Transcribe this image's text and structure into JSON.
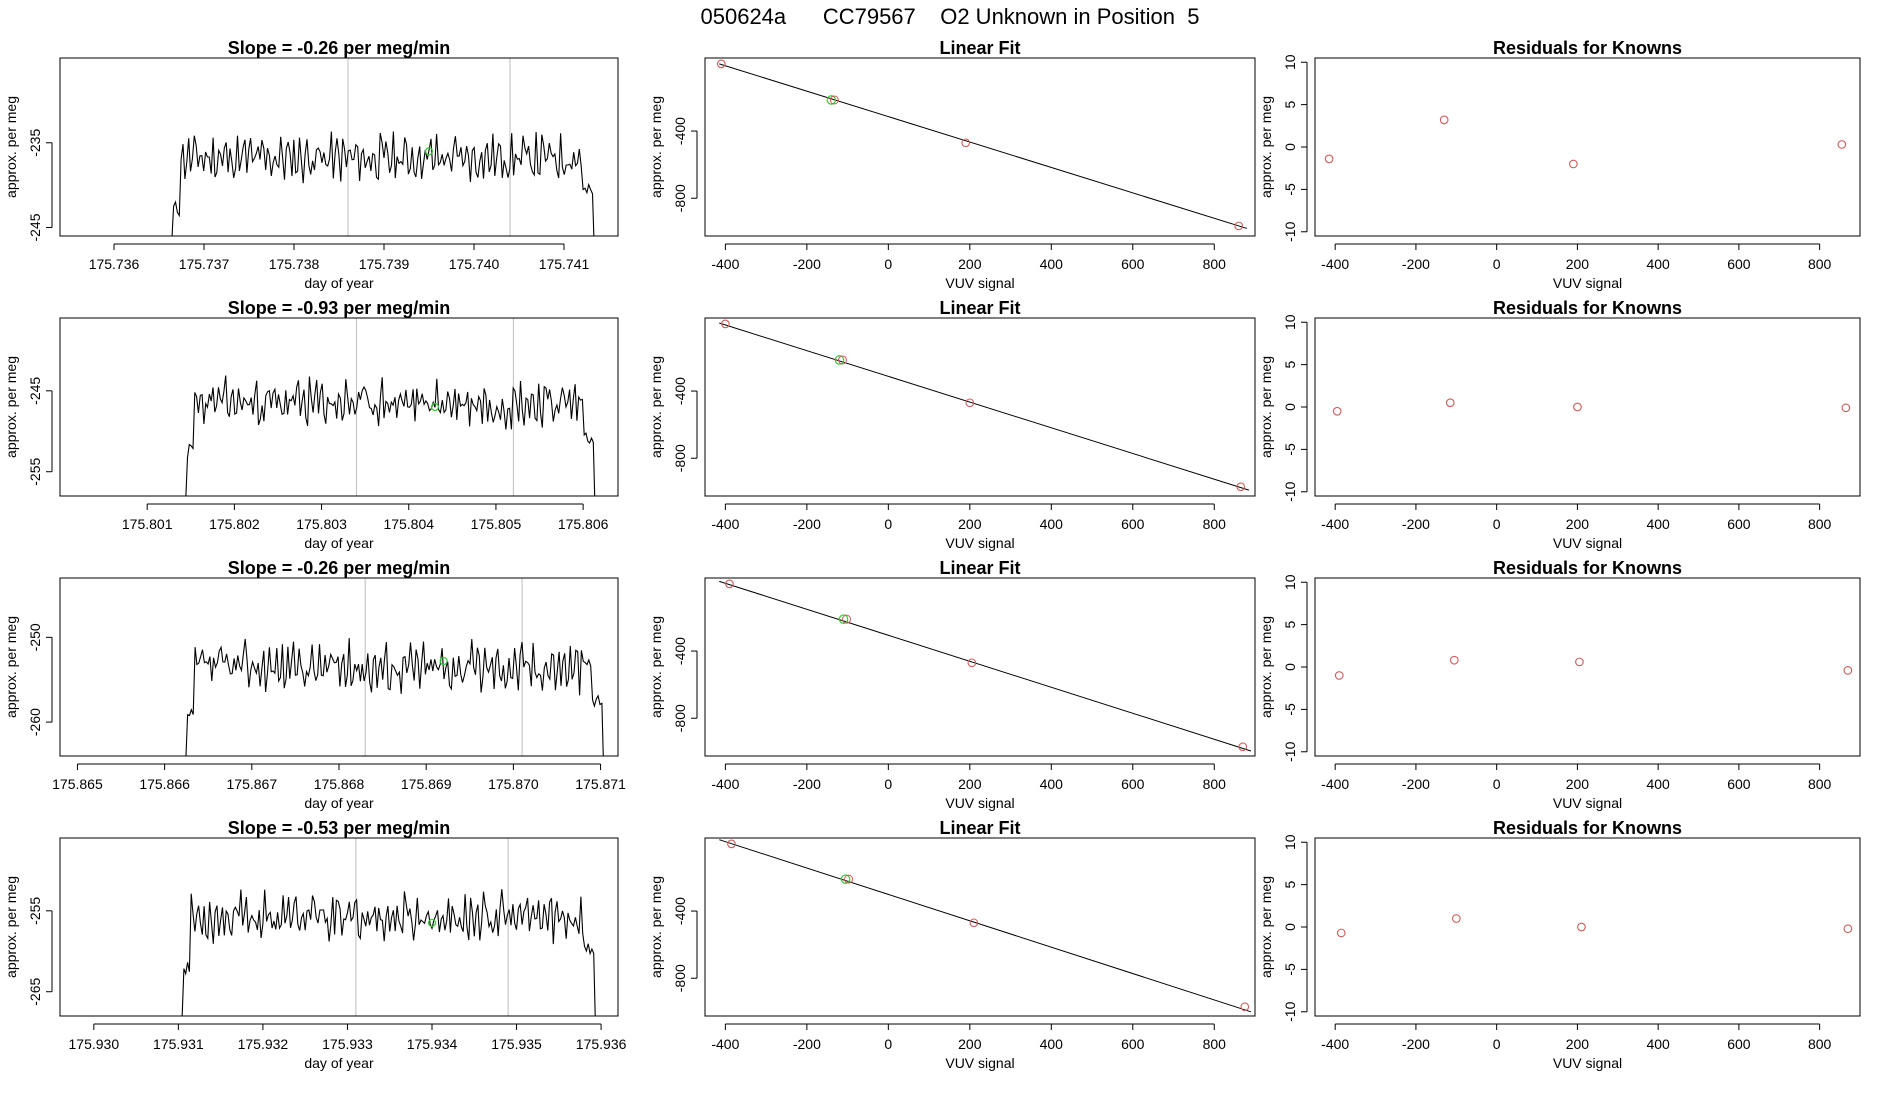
{
  "figure_title": "050624a      CC79567    O2 Unknown in Position  5",
  "colors": {
    "trace": "#000000",
    "vline": "#bebebe",
    "known_point": "#cd5c5c",
    "unknown_point": "#33cc33",
    "fit_line": "#000000"
  },
  "chart_data": [
    {
      "type": "line",
      "row": 1,
      "col": 1,
      "title": "Slope =  -0.26  per meg/min",
      "xlabel": "day of year",
      "ylabel": "approx. per meg",
      "xlim": [
        175.7354,
        175.7416
      ],
      "ylim": [
        -246,
        -225
      ],
      "xticks": [
        175.736,
        175.737,
        175.738,
        175.739,
        175.74,
        175.741
      ],
      "xtick_labels": [
        "175.736",
        "175.737",
        "175.738",
        "175.739",
        "175.740",
        "175.741"
      ],
      "yticks": [
        -235,
        -245
      ],
      "ytick_labels": [
        "-235",
        "-245"
      ],
      "vlines": [
        175.7386,
        175.7404
      ],
      "trace_x_start": 175.7366,
      "trace_x_end": 175.7414,
      "trace_level": -236.8,
      "trace_amp": 2.4,
      "trace_seed": 11,
      "marker": {
        "x": 175.7395,
        "y": -236.0
      }
    },
    {
      "type": "scatter",
      "row": 1,
      "col": 2,
      "title": "Linear Fit",
      "xlabel": "VUV signal",
      "ylabel": "approx. per meg",
      "xlim": [
        -450,
        900
      ],
      "ylim": [
        -1025,
        35
      ],
      "xticks": [
        -400,
        -200,
        0,
        200,
        400,
        600,
        800
      ],
      "xtick_labels": [
        "-400",
        "-200",
        "0",
        "200",
        "400",
        "600",
        "800"
      ],
      "yticks": [
        -400,
        -800
      ],
      "ytick_labels": [
        "-400",
        "-800"
      ],
      "known_points": [
        {
          "x": -410,
          "y": 0
        },
        {
          "x": 190,
          "y": -470
        },
        {
          "x": 860,
          "y": -965
        }
      ],
      "unknown_points": [
        {
          "x": -140,
          "y": -215
        }
      ],
      "fit_line": [
        {
          "x": -415,
          "y": 0
        },
        {
          "x": 880,
          "y": -980
        }
      ]
    },
    {
      "type": "scatter",
      "row": 1,
      "col": 3,
      "title": "Residuals for Knowns",
      "xlabel": "VUV signal",
      "ylabel": "approx. per meg",
      "xlim": [
        -450,
        900
      ],
      "ylim": [
        -10.5,
        10.5
      ],
      "xticks": [
        -400,
        -200,
        0,
        200,
        400,
        600,
        800
      ],
      "xtick_labels": [
        "-400",
        "-200",
        "0",
        "200",
        "400",
        "600",
        "800"
      ],
      "yticks": [
        10,
        5,
        0,
        -5,
        -10
      ],
      "ytick_labels": [
        "10",
        "5",
        "0",
        "-5",
        "-10"
      ],
      "points": [
        {
          "x": -415,
          "y": -1.4
        },
        {
          "x": -130,
          "y": 3.2
        },
        {
          "x": 190,
          "y": -2.0
        },
        {
          "x": 855,
          "y": 0.3
        }
      ]
    },
    {
      "type": "line",
      "row": 2,
      "col": 1,
      "title": "Slope =  -0.93  per meg/min",
      "xlabel": "day of year",
      "ylabel": "approx. per meg",
      "xlim": [
        175.8,
        175.8064
      ],
      "ylim": [
        -258,
        -236
      ],
      "xticks": [
        175.801,
        175.802,
        175.803,
        175.804,
        175.805,
        175.806
      ],
      "xtick_labels": [
        "175.801",
        "175.802",
        "175.803",
        "175.804",
        "175.805",
        "175.806"
      ],
      "yticks": [
        -245,
        -255
      ],
      "ytick_labels": [
        "-245",
        "-255"
      ],
      "vlines": [
        175.8034,
        175.8052
      ],
      "trace_x_start": 175.8014,
      "trace_x_end": 175.8062,
      "trace_level": -246.5,
      "trace_amp": 2.6,
      "trace_seed": 23,
      "marker": {
        "x": 175.8043,
        "y": -247.0
      }
    },
    {
      "type": "scatter",
      "row": 2,
      "col": 2,
      "title": "Linear Fit",
      "xlabel": "VUV signal",
      "ylabel": "approx. per meg",
      "xlim": [
        -450,
        900
      ],
      "ylim": [
        -1025,
        35
      ],
      "xticks": [
        -400,
        -200,
        0,
        200,
        400,
        600,
        800
      ],
      "xtick_labels": [
        "-400",
        "-200",
        "0",
        "200",
        "400",
        "600",
        "800"
      ],
      "yticks": [
        -400,
        -800
      ],
      "ytick_labels": [
        "-400",
        "-800"
      ],
      "known_points": [
        {
          "x": -400,
          "y": 0
        },
        {
          "x": 200,
          "y": -470
        },
        {
          "x": 865,
          "y": -970
        }
      ],
      "unknown_points": [
        {
          "x": -120,
          "y": -215
        }
      ],
      "fit_line": [
        {
          "x": -415,
          "y": 5
        },
        {
          "x": 885,
          "y": -990
        }
      ]
    },
    {
      "type": "scatter",
      "row": 2,
      "col": 3,
      "title": "Residuals for Knowns",
      "xlabel": "VUV signal",
      "ylabel": "approx. per meg",
      "xlim": [
        -450,
        900
      ],
      "ylim": [
        -10.5,
        10.5
      ],
      "xticks": [
        -400,
        -200,
        0,
        200,
        400,
        600,
        800
      ],
      "xtick_labels": [
        "-400",
        "-200",
        "0",
        "200",
        "400",
        "600",
        "800"
      ],
      "yticks": [
        10,
        5,
        0,
        -5,
        -10
      ],
      "ytick_labels": [
        "10",
        "5",
        "0",
        "-5",
        "-10"
      ],
      "points": [
        {
          "x": -395,
          "y": -0.5
        },
        {
          "x": -115,
          "y": 0.5
        },
        {
          "x": 200,
          "y": 0.0
        },
        {
          "x": 865,
          "y": -0.1
        }
      ]
    },
    {
      "type": "line",
      "row": 3,
      "col": 1,
      "title": "Slope =  -0.26  per meg/min",
      "xlabel": "day of year",
      "ylabel": "approx. per meg",
      "xlim": [
        175.8648,
        175.8712
      ],
      "ylim": [
        -264,
        -243
      ],
      "xticks": [
        175.865,
        175.866,
        175.867,
        175.868,
        175.869,
        175.87,
        175.871
      ],
      "xtick_labels": [
        "175.865",
        "175.866",
        "175.867",
        "175.868",
        "175.869",
        "175.870",
        "175.871"
      ],
      "yticks": [
        -250,
        -260
      ],
      "ytick_labels": [
        "-250",
        "-260"
      ],
      "vlines": [
        175.8683,
        175.8701
      ],
      "trace_x_start": 175.8662,
      "trace_x_end": 175.8711,
      "trace_level": -253.5,
      "trace_amp": 2.6,
      "trace_seed": 37,
      "marker": {
        "x": 175.8692,
        "y": -252.8
      }
    },
    {
      "type": "scatter",
      "row": 3,
      "col": 2,
      "title": "Linear Fit",
      "xlabel": "VUV signal",
      "ylabel": "approx. per meg",
      "xlim": [
        -450,
        900
      ],
      "ylim": [
        -1025,
        35
      ],
      "xticks": [
        -400,
        -200,
        0,
        200,
        400,
        600,
        800
      ],
      "xtick_labels": [
        "-400",
        "-200",
        "0",
        "200",
        "400",
        "600",
        "800"
      ],
      "yticks": [
        -400,
        -800
      ],
      "ytick_labels": [
        "-400",
        "-800"
      ],
      "known_points": [
        {
          "x": -390,
          "y": 0
        },
        {
          "x": 205,
          "y": -470
        },
        {
          "x": 870,
          "y": -970
        }
      ],
      "unknown_points": [
        {
          "x": -110,
          "y": -210
        }
      ],
      "fit_line": [
        {
          "x": -415,
          "y": 15
        },
        {
          "x": 890,
          "y": -995
        }
      ]
    },
    {
      "type": "scatter",
      "row": 3,
      "col": 3,
      "title": "Residuals for Knowns",
      "xlabel": "VUV signal",
      "ylabel": "approx. per meg",
      "xlim": [
        -450,
        900
      ],
      "ylim": [
        -10.5,
        10.5
      ],
      "xticks": [
        -400,
        -200,
        0,
        200,
        400,
        600,
        800
      ],
      "xtick_labels": [
        "-400",
        "-200",
        "0",
        "200",
        "400",
        "600",
        "800"
      ],
      "yticks": [
        10,
        5,
        0,
        -5,
        -10
      ],
      "ytick_labels": [
        "10",
        "5",
        "0",
        "-5",
        "-10"
      ],
      "points": [
        {
          "x": -390,
          "y": -1.0
        },
        {
          "x": -105,
          "y": 0.8
        },
        {
          "x": 205,
          "y": 0.6
        },
        {
          "x": 870,
          "y": -0.4
        }
      ]
    },
    {
      "type": "line",
      "row": 4,
      "col": 1,
      "title": "Slope =  -0.53  per meg/min",
      "xlabel": "day of year",
      "ylabel": "approx. per meg",
      "xlim": [
        175.9296,
        175.9362
      ],
      "ylim": [
        -268,
        -246
      ],
      "xticks": [
        175.93,
        175.931,
        175.932,
        175.933,
        175.934,
        175.935,
        175.936
      ],
      "xtick_labels": [
        "175.930",
        "175.931",
        "175.932",
        "175.933",
        "175.934",
        "175.935",
        "175.936"
      ],
      "yticks": [
        -255,
        -265
      ],
      "ytick_labels": [
        "-255",
        "-265"
      ],
      "vlines": [
        175.9331,
        175.9349
      ],
      "trace_x_start": 175.931,
      "trace_x_end": 175.936,
      "trace_level": -255.8,
      "trace_amp": 2.6,
      "trace_seed": 53,
      "marker": {
        "x": 175.934,
        "y": -256.5
      }
    },
    {
      "type": "scatter",
      "row": 4,
      "col": 2,
      "title": "Linear Fit",
      "xlabel": "VUV signal",
      "ylabel": "approx. per meg",
      "xlim": [
        -450,
        900
      ],
      "ylim": [
        -1025,
        35
      ],
      "xticks": [
        -400,
        -200,
        0,
        200,
        400,
        600,
        800
      ],
      "xtick_labels": [
        "-400",
        "-200",
        "0",
        "200",
        "400",
        "600",
        "800"
      ],
      "yticks": [
        -400,
        -800
      ],
      "ytick_labels": [
        "-400",
        "-800"
      ],
      "known_points": [
        {
          "x": -385,
          "y": 0
        },
        {
          "x": 210,
          "y": -470
        },
        {
          "x": 875,
          "y": -970
        }
      ],
      "unknown_points": [
        {
          "x": -105,
          "y": -210
        }
      ],
      "fit_line": [
        {
          "x": -415,
          "y": 25
        },
        {
          "x": 890,
          "y": -1000
        }
      ]
    },
    {
      "type": "scatter",
      "row": 4,
      "col": 3,
      "title": "Residuals for Knowns",
      "xlabel": "VUV signal",
      "ylabel": "approx. per meg",
      "xlim": [
        -450,
        900
      ],
      "ylim": [
        -10.5,
        10.5
      ],
      "xticks": [
        -400,
        -200,
        0,
        200,
        400,
        600,
        800
      ],
      "xtick_labels": [
        "-400",
        "-200",
        "0",
        "200",
        "400",
        "600",
        "800"
      ],
      "yticks": [
        10,
        5,
        0,
        -5,
        -10
      ],
      "ytick_labels": [
        "10",
        "5",
        "0",
        "-5",
        "-10"
      ],
      "points": [
        {
          "x": -385,
          "y": -0.7
        },
        {
          "x": -100,
          "y": 1.0
        },
        {
          "x": 210,
          "y": 0.0
        },
        {
          "x": 870,
          "y": -0.2
        }
      ]
    }
  ]
}
